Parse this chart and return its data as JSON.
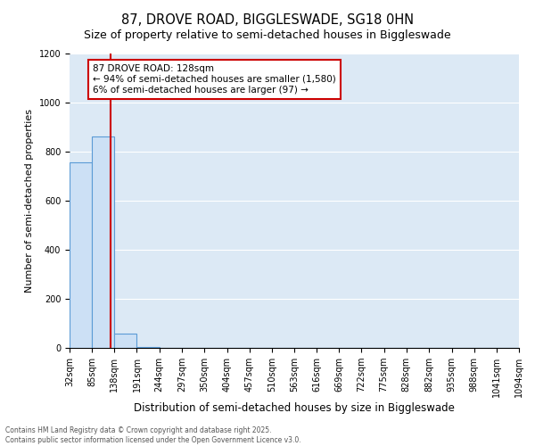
{
  "title": "87, DROVE ROAD, BIGGLESWADE, SG18 0HN",
  "subtitle": "Size of property relative to semi-detached houses in Biggleswade",
  "xlabel": "Distribution of semi-detached houses by size in Biggleswade",
  "ylabel": "Number of semi-detached properties",
  "bin_edges": [
    32,
    85,
    138,
    191,
    244,
    297,
    350,
    404,
    457,
    510,
    563,
    616,
    669,
    722,
    775,
    828,
    882,
    935,
    988,
    1041,
    1094
  ],
  "bar_heights": [
    755,
    860,
    60,
    5,
    0,
    0,
    0,
    0,
    0,
    0,
    0,
    0,
    0,
    0,
    0,
    0,
    0,
    0,
    0,
    0
  ],
  "bar_color": "#cce0f5",
  "bar_edge_color": "#5b9bd5",
  "property_size": 128,
  "property_line_color": "#cc0000",
  "annotation_text": "87 DROVE ROAD: 128sqm\n← 94% of semi-detached houses are smaller (1,580)\n6% of semi-detached houses are larger (97) →",
  "annotation_box_color": "#ffffff",
  "annotation_box_edge_color": "#cc0000",
  "ylim": [
    0,
    1200
  ],
  "yticks": [
    0,
    200,
    400,
    600,
    800,
    1000,
    1200
  ],
  "background_color": "#dce9f5",
  "footer_text": "Contains HM Land Registry data © Crown copyright and database right 2025.\nContains public sector information licensed under the Open Government Licence v3.0.",
  "title_fontsize": 10.5,
  "subtitle_fontsize": 9,
  "tick_label_fontsize": 7,
  "ylabel_fontsize": 8,
  "xlabel_fontsize": 8.5,
  "annotation_fontsize": 7.5
}
